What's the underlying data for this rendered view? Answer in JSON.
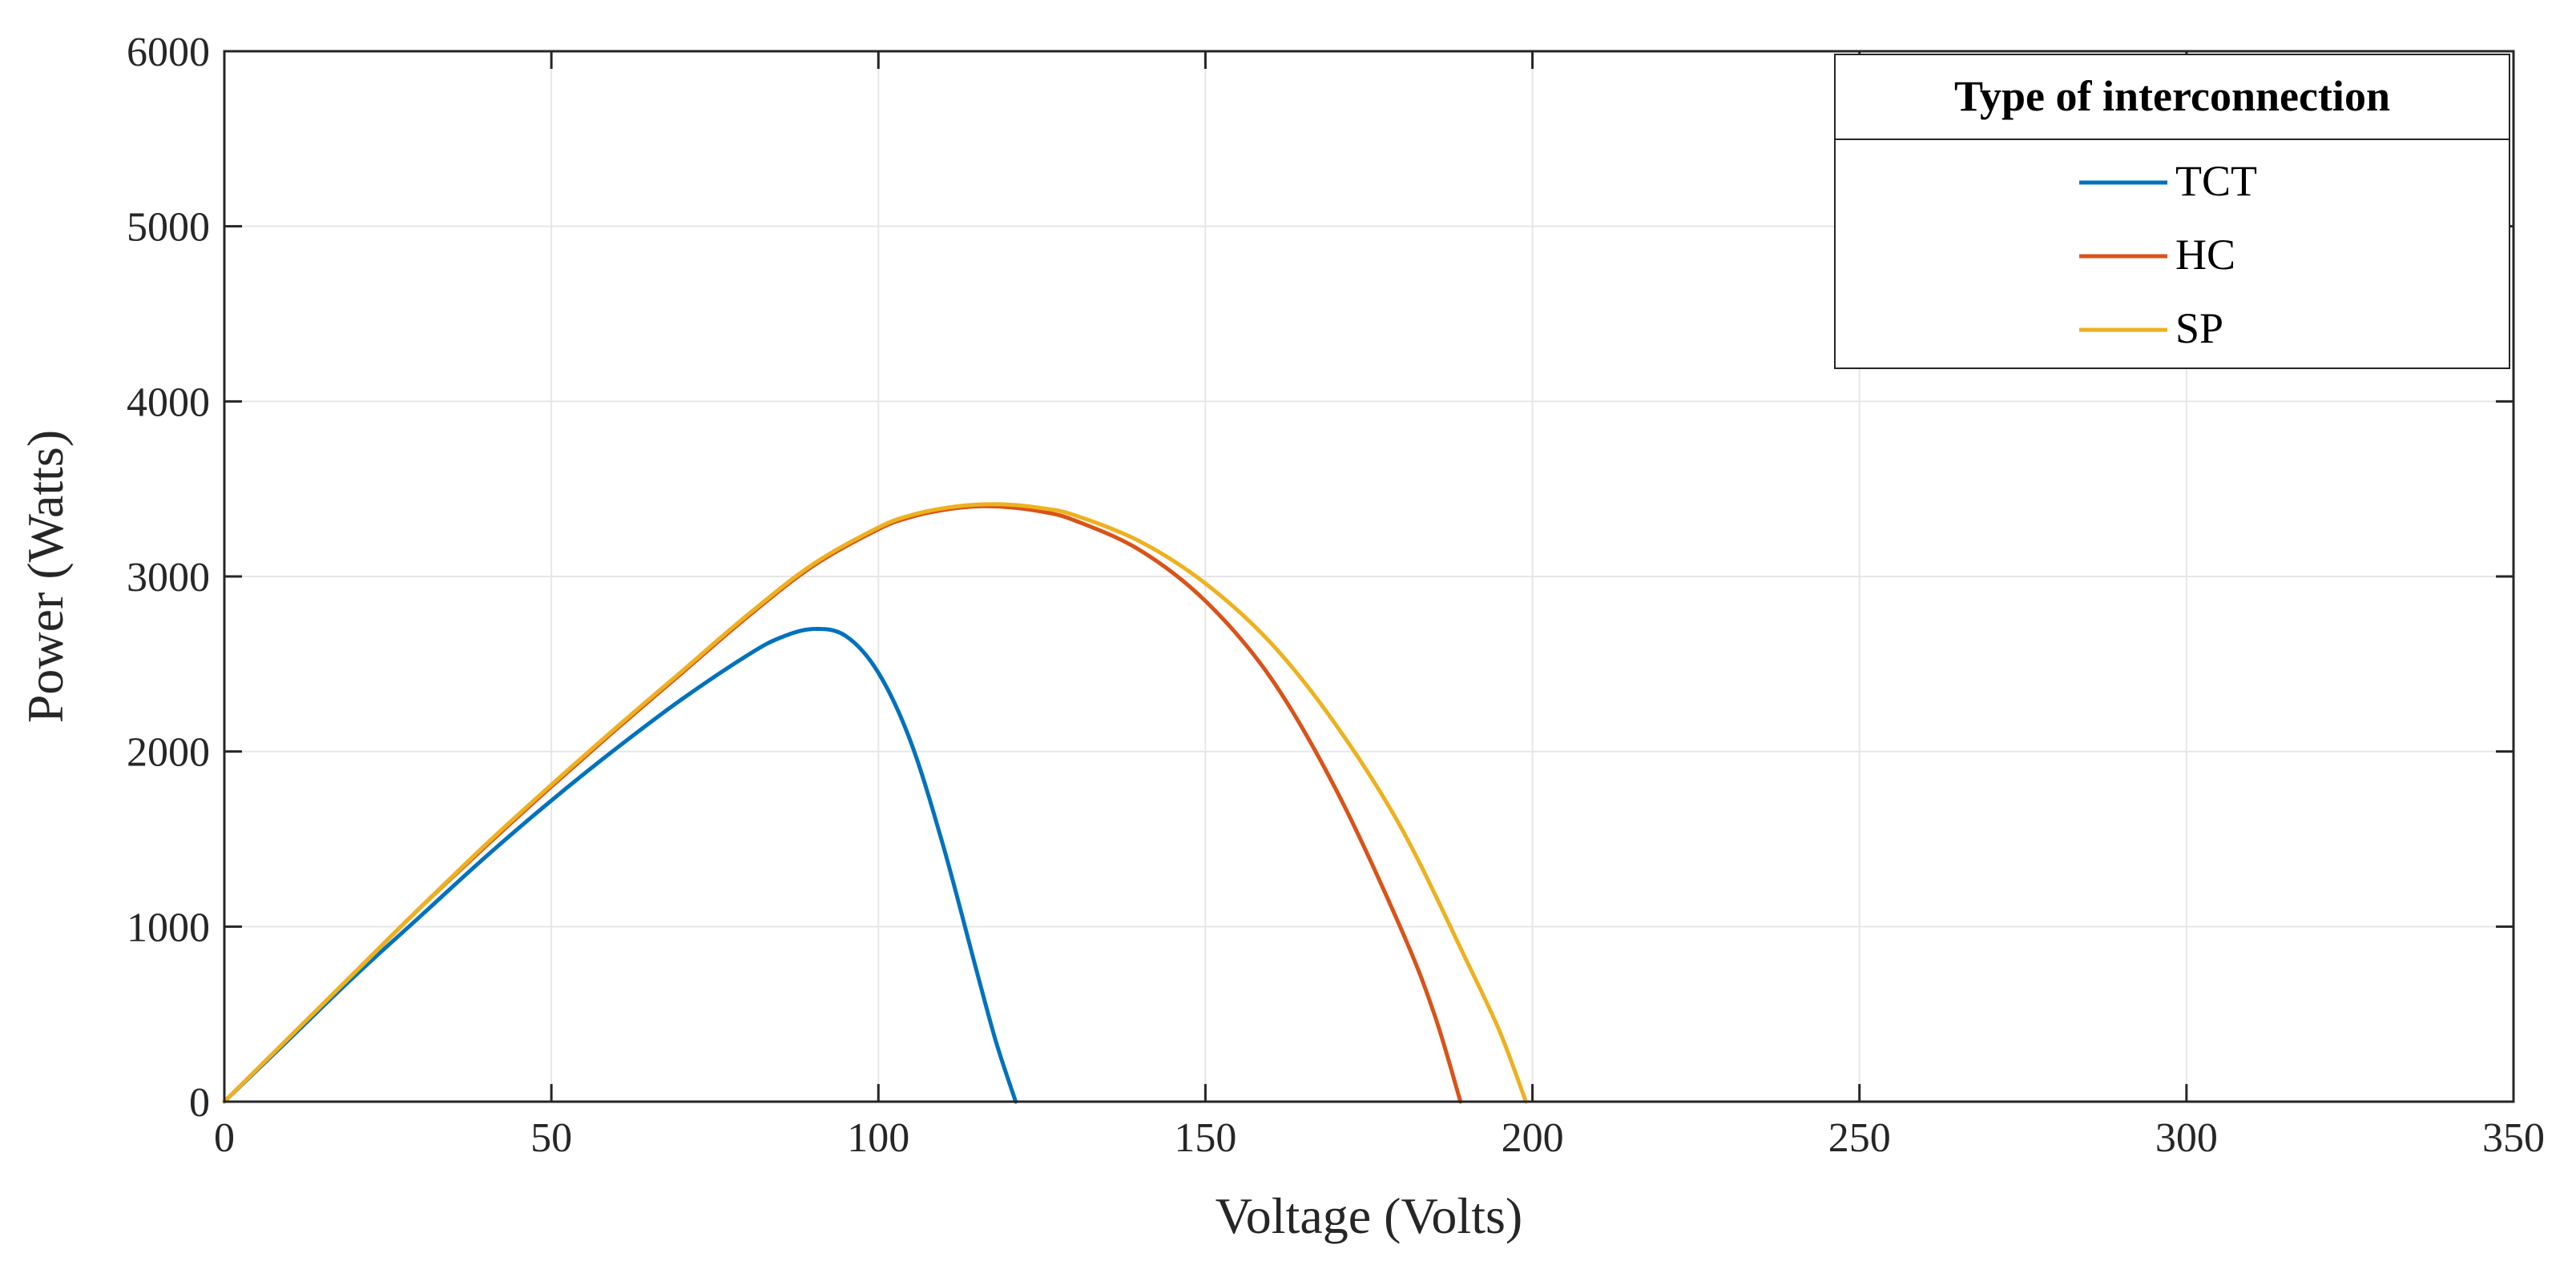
{
  "chart_data": {
    "type": "line",
    "title": "",
    "xlabel": "Voltage (Volts)",
    "ylabel": "Power (Watts)",
    "xlim": [
      0,
      350
    ],
    "ylim": [
      0,
      6000
    ],
    "xticks": [
      0,
      50,
      100,
      150,
      200,
      250,
      300,
      350
    ],
    "yticks": [
      0,
      1000,
      2000,
      3000,
      4000,
      5000,
      6000
    ],
    "grid": true,
    "legend": {
      "title": "Type of interconnection",
      "location": "top-right"
    },
    "series": [
      {
        "name": "TCT",
        "color": "#0072BD",
        "x": [
          0,
          10,
          20,
          30,
          40,
          50,
          60,
          70,
          80,
          85,
          90,
          95,
          100,
          105,
          110,
          115,
          118,
          121
        ],
        "y": [
          0,
          360,
          720,
          1060,
          1400,
          1720,
          2020,
          2300,
          2550,
          2650,
          2700,
          2660,
          2450,
          2050,
          1450,
          750,
          340,
          0
        ]
      },
      {
        "name": "HC",
        "color": "#D95319",
        "x": [
          0,
          10,
          20,
          30,
          40,
          50,
          60,
          70,
          80,
          90,
          100,
          105,
          110,
          115,
          120,
          125,
          130,
          140,
          150,
          160,
          170,
          180,
          185,
          189
        ],
        "y": [
          0,
          370,
          740,
          1110,
          1460,
          1800,
          2130,
          2450,
          2770,
          3060,
          3270,
          3340,
          3380,
          3400,
          3395,
          3370,
          3320,
          3150,
          2860,
          2420,
          1780,
          980,
          500,
          0
        ]
      },
      {
        "name": "SP",
        "color": "#EDB120",
        "x": [
          0,
          10,
          20,
          30,
          40,
          50,
          60,
          70,
          80,
          90,
          100,
          105,
          110,
          115,
          120,
          125,
          130,
          140,
          150,
          160,
          170,
          180,
          190,
          195,
          199
        ],
        "y": [
          0,
          370,
          740,
          1110,
          1470,
          1810,
          2140,
          2460,
          2780,
          3070,
          3280,
          3350,
          3390,
          3410,
          3410,
          3390,
          3350,
          3200,
          2960,
          2620,
          2150,
          1560,
          800,
          400,
          0
        ]
      }
    ]
  }
}
